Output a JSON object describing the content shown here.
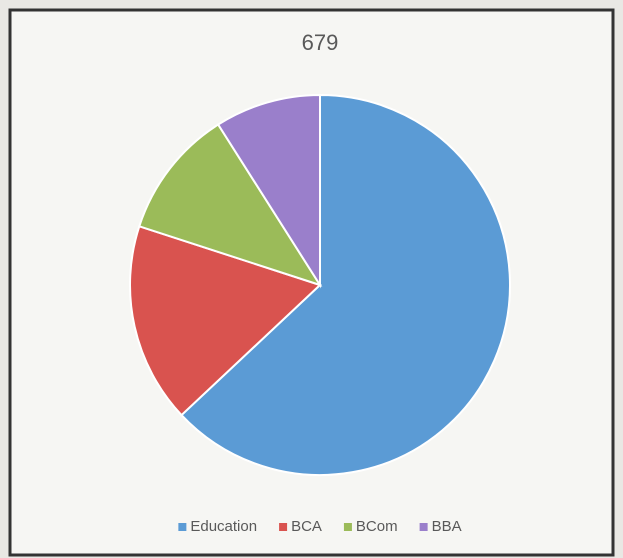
{
  "chart_data": {
    "type": "pie",
    "title": "679",
    "categories": [
      "Education",
      "BCA",
      "BCom",
      "BBA"
    ],
    "values": [
      63,
      17,
      11,
      9
    ],
    "colors": [
      "#5b9bd5",
      "#d9534f",
      "#9bbb59",
      "#9a7fcb"
    ],
    "legend": "bottom"
  }
}
